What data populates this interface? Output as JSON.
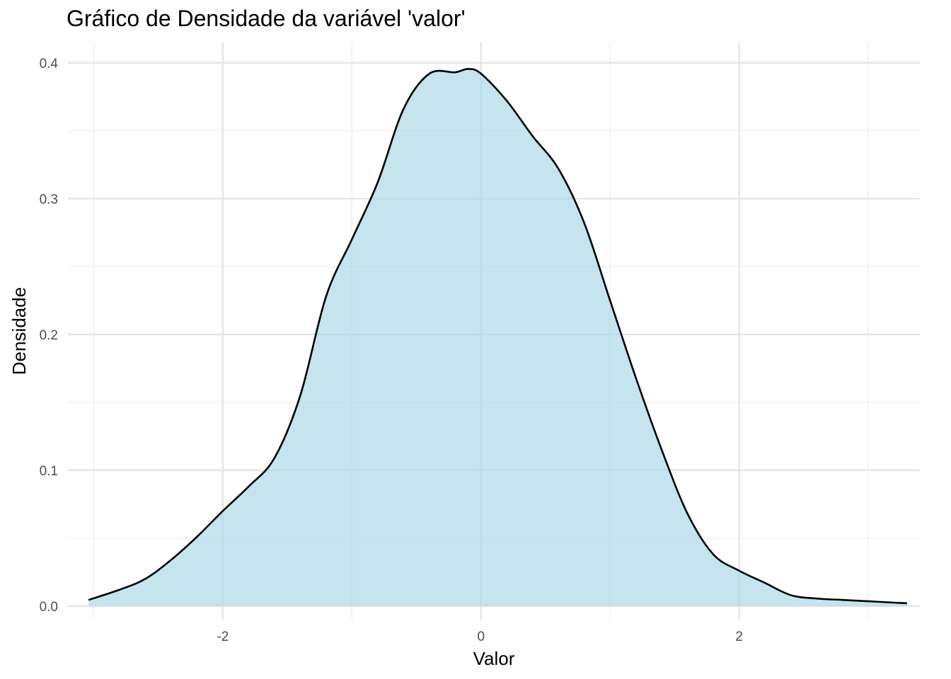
{
  "chart_data": {
    "type": "area",
    "title": "Gráfico de Densidade da variável 'valor'",
    "xlabel": "Valor",
    "ylabel": "Densidade",
    "xlim": [
      -3.2,
      3.4
    ],
    "ylim": [
      -0.01,
      0.415
    ],
    "x_ticks": [
      -2,
      0,
      2
    ],
    "x_tick_labels": [
      "-2",
      "0",
      "2"
    ],
    "y_ticks": [
      0.0,
      0.1,
      0.2,
      0.3,
      0.4
    ],
    "y_tick_labels": [
      "0.0",
      "0.1",
      "0.2",
      "0.3",
      "0.4"
    ],
    "grid": true,
    "legend": "none",
    "fill_color": "#add8e6",
    "fill_opacity": 0.7,
    "line_color": "#000000",
    "series": [
      {
        "x": [
          -3.04,
          -2.8,
          -2.6,
          -2.4,
          -2.2,
          -2.0,
          -1.8,
          -1.6,
          -1.4,
          -1.2,
          -1.0,
          -0.8,
          -0.6,
          -0.4,
          -0.2,
          -0.1,
          0.0,
          0.2,
          0.4,
          0.6,
          0.8,
          1.0,
          1.2,
          1.4,
          1.6,
          1.8,
          2.0,
          2.2,
          2.4,
          2.6,
          2.8,
          3.0,
          3.2,
          3.3
        ],
        "y": [
          0.0045,
          0.012,
          0.02,
          0.034,
          0.051,
          0.07,
          0.088,
          0.109,
          0.155,
          0.228,
          0.27,
          0.312,
          0.366,
          0.392,
          0.393,
          0.3955,
          0.392,
          0.372,
          0.346,
          0.322,
          0.282,
          0.225,
          0.168,
          0.115,
          0.068,
          0.038,
          0.026,
          0.017,
          0.008,
          0.0055,
          0.0045,
          0.0035,
          0.0025,
          0.002
        ]
      }
    ]
  }
}
